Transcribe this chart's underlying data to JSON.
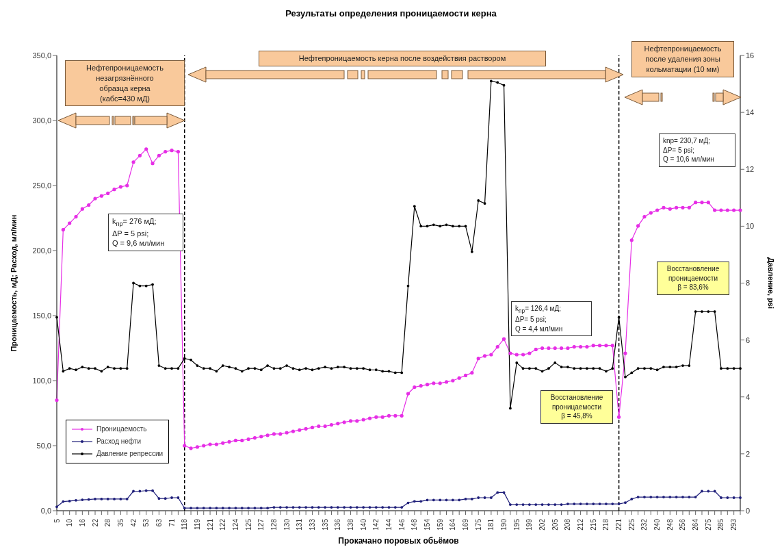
{
  "chart_data": {
    "type": "line",
    "title": "Результаты определения проницаемости керна",
    "xlabel": "Прокачано поровых обьёмов",
    "ylabel": "Проницаемость, мД; Расход, мл/мин",
    "y2label": "Давление, psi",
    "categories": [
      "5",
      null,
      "10",
      null,
      "16",
      null,
      "22",
      null,
      "28",
      null,
      "35",
      null,
      "42",
      null,
      "53",
      null,
      "63",
      null,
      "71",
      null,
      "118",
      null,
      "119",
      null,
      "121",
      null,
      "122",
      null,
      "124",
      null,
      "125",
      null,
      "127",
      null,
      "128",
      null,
      "130",
      null,
      "131",
      null,
      "133",
      null,
      "135",
      null,
      "136",
      null,
      "138",
      null,
      "140",
      null,
      "142",
      null,
      "144",
      null,
      "146",
      null,
      "148",
      null,
      "154",
      null,
      "159",
      null,
      "164",
      null,
      "169",
      null,
      "175",
      null,
      "181",
      null,
      "190",
      null,
      "195",
      null,
      "199",
      null,
      "202",
      null,
      "205",
      null,
      "208",
      null,
      "212",
      null,
      "215",
      null,
      "218",
      null,
      "221",
      null,
      "225",
      null,
      "232",
      null,
      "240",
      null,
      "248",
      null,
      "256",
      null,
      "264",
      null,
      "275",
      null,
      "285",
      null,
      "293",
      null
    ],
    "series": [
      {
        "name": "Проницаемость",
        "color": "#e62ee6",
        "values": [
          85,
          216,
          221,
          226,
          232,
          235,
          240,
          242,
          244,
          247,
          249,
          250,
          268,
          273,
          278,
          267,
          273,
          276,
          277,
          276,
          50,
          48,
          49,
          50,
          51,
          51,
          52,
          53,
          54,
          54,
          55,
          56,
          57,
          58,
          59,
          59,
          60,
          61,
          62,
          63,
          64,
          65,
          65,
          66,
          67,
          68,
          69,
          69,
          70,
          71,
          72,
          72,
          73,
          73,
          73,
          90,
          95,
          96,
          97,
          98,
          98,
          99,
          100,
          102,
          104,
          106,
          117,
          119,
          120,
          126,
          132,
          121,
          120,
          120,
          121,
          124,
          125,
          125,
          125,
          125,
          125,
          126,
          126,
          126,
          127,
          127,
          127,
          127,
          72,
          121,
          208,
          219,
          226,
          229,
          231,
          233,
          232,
          233,
          233,
          233,
          237,
          237,
          237,
          231,
          231,
          231,
          231,
          231
        ]
      },
      {
        "name": "Расход нефти",
        "color": "#1f1f7a",
        "values": [
          3,
          7,
          7.4,
          8,
          8.4,
          8.6,
          9,
          9,
          9,
          9,
          9,
          9,
          15,
          15,
          15.4,
          15.4,
          9.4,
          9.4,
          10,
          10,
          2,
          2,
          2,
          2,
          2,
          2,
          2,
          2,
          2,
          2,
          2,
          2,
          2,
          2,
          2.6,
          2.6,
          2.6,
          2.6,
          2.6,
          2.6,
          2.6,
          2.6,
          2.6,
          2.6,
          2.6,
          2.6,
          2.6,
          2.6,
          2.6,
          2.6,
          2.6,
          2.6,
          2.6,
          2.6,
          2.6,
          6,
          7.2,
          7.2,
          8.2,
          8.2,
          8.2,
          8.2,
          8.2,
          8.2,
          9,
          9,
          10,
          10,
          10,
          14,
          14,
          4.7,
          4.7,
          4.7,
          4.7,
          4.7,
          4.7,
          4.7,
          4.7,
          4.7,
          5.2,
          5.2,
          5.2,
          5.2,
          5.2,
          5.2,
          5.2,
          5.2,
          5.2,
          6.2,
          9,
          10.5,
          10.5,
          10.5,
          10.5,
          10.5,
          10.5,
          10.5,
          10.5,
          10.5,
          10.5,
          15,
          15,
          15,
          10,
          10,
          10,
          10
        ]
      },
      {
        "name": "Давление репрессии",
        "color": "#000000",
        "axis": "y2",
        "values": [
          6.8,
          4.9,
          5.0,
          4.95,
          5.05,
          5.0,
          5.0,
          4.9,
          5.05,
          5.0,
          5.0,
          5.0,
          8.0,
          7.9,
          7.9,
          7.95,
          5.1,
          5.0,
          5.0,
          5.0,
          5.35,
          5.3,
          5.1,
          5.0,
          5.0,
          4.9,
          5.1,
          5.05,
          5.0,
          4.9,
          5.0,
          5.0,
          4.95,
          5.1,
          5.0,
          5.0,
          5.1,
          5.0,
          4.95,
          5.0,
          4.95,
          5.0,
          5.05,
          5.0,
          5.05,
          5.05,
          5.0,
          5.0,
          5.0,
          4.95,
          4.95,
          4.9,
          4.9,
          4.85,
          4.85,
          7.9,
          10.7,
          10.0,
          10.0,
          10.05,
          10.0,
          10.05,
          10.0,
          10.0,
          10.0,
          9.1,
          10.9,
          10.8,
          15.1,
          15.05,
          14.95,
          3.6,
          5.2,
          5.0,
          5.0,
          5.0,
          4.9,
          5.0,
          5.2,
          5.05,
          5.05,
          5.0,
          5.0,
          5.0,
          5.0,
          5.0,
          4.9,
          5.0,
          6.8,
          4.7,
          4.85,
          5.0,
          5.0,
          5.0,
          4.95,
          5.05,
          5.05,
          5.05,
          5.1,
          5.1,
          7.0,
          7.0,
          7.0,
          7.0,
          5.0,
          5.0,
          5.0,
          5.0
        ]
      }
    ],
    "ylim": [
      0,
      350
    ],
    "yticks": [
      {
        "value": 0,
        "label": "0,0"
      },
      {
        "value": 50,
        "label": "50,0"
      },
      {
        "value": 100,
        "label": "100,0"
      },
      {
        "value": 150,
        "label": "150,0"
      },
      {
        "value": 200,
        "label": "200,0"
      },
      {
        "value": 250,
        "label": "250,0"
      },
      {
        "value": 300,
        "label": "300,0"
      },
      {
        "value": 350,
        "label": "350,0"
      }
    ],
    "y2lim": [
      0,
      16
    ],
    "y2ticks": [
      0,
      2,
      4,
      6,
      8,
      10,
      12,
      14,
      16
    ],
    "ref_lines": [
      {
        "axis": "x",
        "value": "118",
        "color": "#000000",
        "line_style": "dashed"
      },
      {
        "axis": "x",
        "value": "221",
        "color": "#000000",
        "line_style": "dashed"
      }
    ],
    "annotations": [
      "Нефтепроницаемость\nнезагрязнённого\nобразца керна\n(кабс=430 мД)",
      "Нефтепроницаемость керна после воздействия раствором",
      "Нефтепроницаемость\nпосле удаления зоны\nкольматации (10 мм)",
      "k$_{пр}$= 276 мД;\nΔP = 5 psi;\nQ = 9,6 мл/мин",
      "k$_{пр}$= 126,4 мД;\nΔP= 5 psi;\nQ = 4,4 мл/мин",
      "knp= 230,7 мД;\nΔP= 5 psi;\nQ = 10,6 мл/мин",
      "Восстановление\nпроницаемости\nβ = 45,8%",
      "Восстановление\nпроницаемости\nβ = 83,6%"
    ],
    "legend": "bottom left",
    "marker": "circle",
    "line_style": "solid"
  }
}
